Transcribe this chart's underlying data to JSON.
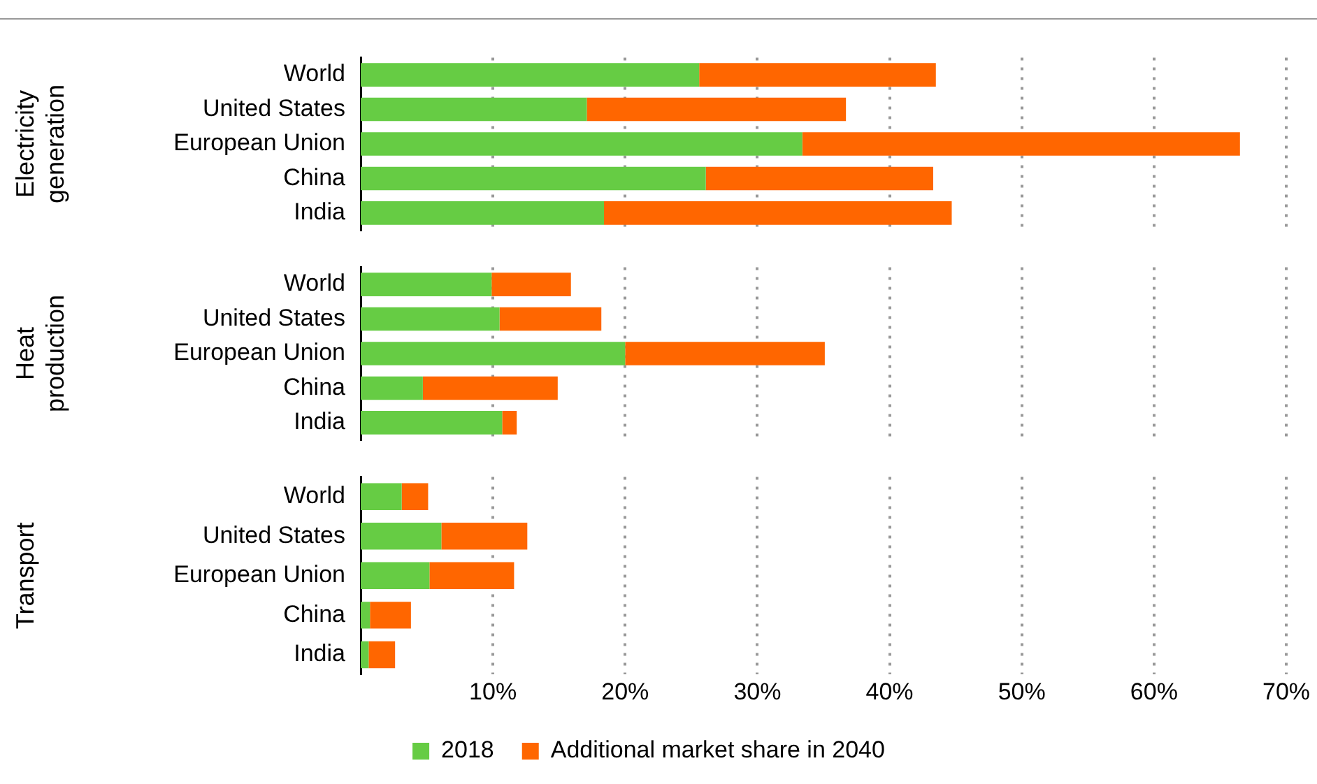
{
  "chart_data": [
    {
      "type": "bar",
      "orientation": "horizontal",
      "stacked": true,
      "ylabel": "Electricity generation",
      "categories": [
        "World",
        "United States",
        "European Union",
        "China",
        "India"
      ],
      "series": [
        {
          "color": "#66cc44",
          "values": [
            25.6,
            17.1,
            33.4,
            26.1,
            18.4
          ]
        },
        {
          "color": "#ff6600",
          "values": [
            17.9,
            19.6,
            33.1,
            17.2,
            26.3
          ]
        }
      ],
      "xlim": [
        0,
        70
      ],
      "xticks": [
        {
          "value": 10,
          "label": null
        },
        {
          "value": 20,
          "label": null
        },
        {
          "value": 30,
          "label": null
        },
        {
          "value": 40,
          "label": null
        },
        {
          "value": 50,
          "label": null
        },
        {
          "value": 60,
          "label": null
        },
        {
          "value": 70,
          "label": null
        }
      ],
      "grid": "x",
      "tick_labels": "y",
      "legend": false
    },
    {
      "type": "bar",
      "orientation": "horizontal",
      "stacked": true,
      "ylabel": "Heat production",
      "categories": [
        "World",
        "United States",
        "European Union",
        "China",
        "India"
      ],
      "series": [
        {
          "color": "#66cc44",
          "values": [
            9.9,
            10.5,
            20.0,
            4.7,
            10.7
          ]
        },
        {
          "color": "#ff6600",
          "values": [
            6.0,
            7.7,
            15.1,
            10.2,
            1.1
          ]
        }
      ],
      "xlim": [
        0,
        70
      ],
      "xticks": [
        {
          "value": 10,
          "label": null
        },
        {
          "value": 20,
          "label": null
        },
        {
          "value": 30,
          "label": null
        },
        {
          "value": 40,
          "label": null
        },
        {
          "value": 50,
          "label": null
        },
        {
          "value": 60,
          "label": null
        },
        {
          "value": 70,
          "label": null
        }
      ],
      "grid": "x",
      "tick_labels": "y",
      "legend": false
    },
    {
      "type": "bar",
      "orientation": "horizontal",
      "stacked": true,
      "ylabel": "Transport",
      "categories": [
        "World",
        "United States",
        "European Union",
        "China",
        "India"
      ],
      "series": [
        {
          "name": "2018",
          "color": "#66cc44",
          "values": [
            3.1,
            6.1,
            5.2,
            0.7,
            0.6
          ]
        },
        {
          "name": "Additional market share in 2040",
          "color": "#ff6600",
          "values": [
            2.0,
            6.5,
            6.4,
            3.1,
            2.0
          ]
        }
      ],
      "xlim": [
        0,
        70
      ],
      "xticks": [
        {
          "value": 10,
          "label": "10%"
        },
        {
          "value": 20,
          "label": "20%"
        },
        {
          "value": 30,
          "label": "30%"
        },
        {
          "value": 40,
          "label": "40%"
        },
        {
          "value": 50,
          "label": "50%"
        },
        {
          "value": 60,
          "label": "60%"
        },
        {
          "value": 70,
          "label": "70%"
        }
      ],
      "grid": "x",
      "legend": "bottom"
    }
  ]
}
